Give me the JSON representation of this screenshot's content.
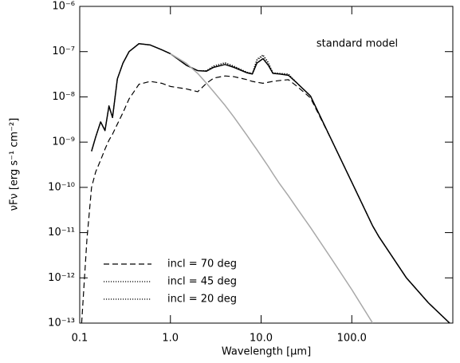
{
  "chart_data": {
    "type": "line",
    "x_label": "Wavelength [μm]",
    "y_label": "νFν [erg s⁻¹ cm⁻²]",
    "annotation": "standard model",
    "x_log": true,
    "y_log": true,
    "legend": "lower left",
    "xlim": [
      0.1,
      1300
    ],
    "ylim": [
      1e-13,
      1e-06
    ],
    "xticks": [
      0.1,
      {
        "value": 1,
        "label": "1.0"
      },
      {
        "value": 10,
        "label": "10.0"
      },
      {
        "value": 100,
        "label": "100.0"
      }
    ],
    "yticks": [
      {
        "value": 1e-13,
        "label": "10⁻¹³"
      },
      {
        "value": 1e-12,
        "label": "10⁻¹²"
      },
      {
        "value": 1e-11,
        "label": "10⁻¹¹"
      },
      {
        "value": 1e-10,
        "label": "10⁻¹⁰"
      },
      {
        "value": 1e-09,
        "label": "10⁻⁹"
      },
      {
        "value": 1e-08,
        "label": "10⁻⁸"
      },
      {
        "value": 1e-07,
        "label": "10⁻⁷"
      },
      {
        "value": 1e-06,
        "label": "10⁻⁶"
      }
    ],
    "x": [
      0.105,
      0.12,
      0.135,
      0.15,
      0.17,
      0.19,
      0.21,
      0.23,
      0.26,
      0.3,
      0.35,
      0.45,
      0.6,
      0.8,
      1.0,
      1.5,
      2,
      2.5,
      3,
      4,
      5,
      7,
      8,
      9,
      10.5,
      12,
      13.5,
      16,
      20,
      25,
      35,
      60,
      100,
      170,
      200,
      400,
      700,
      1200
    ],
    "series": [
      {
        "color": "#000000",
        "line_style": "solid",
        "values": [
          null,
          null,
          6.3e-10,
          1.3e-09,
          2.8e-09,
          1.8e-09,
          6.3e-09,
          3.5e-09,
          2.5e-08,
          5.6e-08,
          1e-07,
          1.5e-07,
          1.4e-07,
          1.1e-07,
          9e-08,
          5e-08,
          3.8e-08,
          3.7e-08,
          4.5e-08,
          5.2e-08,
          4.5e-08,
          3.4e-08,
          3.2e-08,
          5.6e-08,
          7e-08,
          5e-08,
          3.3e-08,
          3.2e-08,
          3e-08,
          2e-08,
          1.05e-08,
          1.1e-09,
          1.3e-10,
          1.4e-11,
          8e-12,
          1e-12,
          2.8e-13,
          1e-13
        ]
      },
      {
        "name": "incl = 70 deg",
        "color": "#000000",
        "line_style": "dashed",
        "values": [
          1e-13,
          7e-12,
          1e-10,
          2.2e-10,
          4e-10,
          7e-10,
          1.1e-09,
          1.5e-09,
          2.5e-09,
          4.5e-09,
          9e-09,
          1.9e-08,
          2.2e-08,
          2e-08,
          1.7e-08,
          1.5e-08,
          1.3e-08,
          2e-08,
          2.6e-08,
          2.9e-08,
          2.8e-08,
          2.4e-08,
          2.2e-08,
          2.1e-08,
          2e-08,
          2.1e-08,
          2.2e-08,
          2.3e-08,
          2.4e-08,
          1.7e-08,
          9.5e-09,
          1.1e-09,
          1.3e-10,
          1.4e-11,
          8e-12,
          1e-12,
          2.8e-13,
          1e-13
        ]
      },
      {
        "name": "incl = 45 deg",
        "color": "#000000",
        "line_style": "dotted",
        "values": [
          null,
          null,
          6.3e-10,
          1.3e-09,
          2.8e-09,
          1.8e-09,
          6.3e-09,
          3.5e-09,
          2.5e-08,
          5.6e-08,
          1e-07,
          1.5e-07,
          1.4e-07,
          1.1e-07,
          9e-08,
          5e-08,
          3.8e-08,
          3.8e-08,
          4.8e-08,
          5.6e-08,
          4.7e-08,
          3.5e-08,
          3.3e-08,
          6.5e-08,
          8e-08,
          5.6e-08,
          3.4e-08,
          3.3e-08,
          3.2e-08,
          2e-08,
          1.05e-08,
          1.1e-09,
          1.3e-10,
          1.4e-11,
          8e-12,
          1e-12,
          2.8e-13,
          1e-13
        ]
      },
      {
        "name": "incl = 20 deg",
        "color": "#000000",
        "line_style": "dotted",
        "values": [
          null,
          null,
          6.3e-10,
          1.3e-09,
          2.8e-09,
          1.8e-09,
          6.3e-09,
          3.5e-09,
          2.5e-08,
          5.6e-08,
          1e-07,
          1.5e-07,
          1.4e-07,
          1.1e-07,
          9e-08,
          5e-08,
          3.8e-08,
          3.8e-08,
          4.8e-08,
          5.7e-08,
          4.8e-08,
          3.5e-08,
          3.3e-08,
          6.8e-08,
          8.5e-08,
          5.8e-08,
          3.4e-08,
          3.3e-08,
          3.2e-08,
          2e-08,
          1.05e-08,
          1.1e-09,
          1.3e-10,
          1.4e-11,
          8e-12,
          1e-12,
          2.8e-13,
          1e-13
        ]
      },
      {
        "color": "#a8a8a8",
        "line_style": "solid",
        "values": [
          null,
          null,
          null,
          null,
          null,
          null,
          null,
          null,
          null,
          null,
          null,
          null,
          null,
          null,
          9e-08,
          5.5e-08,
          3.3e-08,
          2e-08,
          1.3e-08,
          6.5e-09,
          3.6e-09,
          1.4e-09,
          9.5e-10,
          6.8e-10,
          4.3e-10,
          2.9e-10,
          2e-10,
          1.2e-10,
          6.5e-11,
          3.4e-11,
          1.3e-11,
          2.6e-12,
          5.5e-13,
          1e-13,
          null,
          null,
          null,
          null
        ]
      }
    ]
  }
}
